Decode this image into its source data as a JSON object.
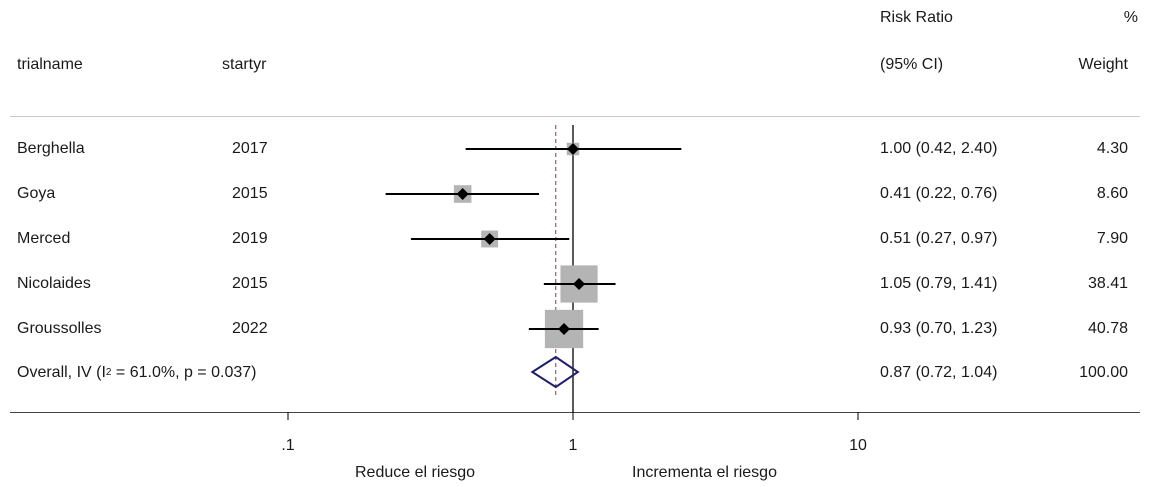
{
  "header": {
    "trialname": "trialname",
    "startyr": "startyr",
    "rr_line1": "Risk Ratio",
    "rr_line2": "(95% CI)",
    "w_line1": "%",
    "w_line2": "Weight"
  },
  "chart_data": {
    "type": "forest",
    "scale": "log",
    "xlim": [
      0.01,
      100
    ],
    "reference_line": 1,
    "overall_line": 0.87,
    "x_ticks": [
      {
        "value": 0.1,
        "label": ".1"
      },
      {
        "value": 1,
        "label": "1"
      },
      {
        "value": 10,
        "label": "10"
      }
    ],
    "x_captions": {
      "left": "Reduce el riesgo",
      "right": "Incrementa el riesgo"
    },
    "studies": [
      {
        "name": "Berghella",
        "year": "2017",
        "rr": 1.0,
        "lo": 0.42,
        "hi": 2.4,
        "ci_text": "1.00 (0.42, 2.40)",
        "weight": 4.3,
        "weight_text": "4.30"
      },
      {
        "name": "Goya",
        "year": "2015",
        "rr": 0.41,
        "lo": 0.22,
        "hi": 0.76,
        "ci_text": "0.41 (0.22, 0.76)",
        "weight": 8.6,
        "weight_text": "8.60"
      },
      {
        "name": "Merced",
        "year": "2019",
        "rr": 0.51,
        "lo": 0.27,
        "hi": 0.97,
        "ci_text": "0.51 (0.27, 0.97)",
        "weight": 7.9,
        "weight_text": "7.90"
      },
      {
        "name": "Nicolaides",
        "year": "2015",
        "rr": 1.05,
        "lo": 0.79,
        "hi": 1.41,
        "ci_text": "1.05 (0.79, 1.41)",
        "weight": 38.41,
        "weight_text": "38.41"
      },
      {
        "name": "Groussolles",
        "year": "2022",
        "rr": 0.93,
        "lo": 0.7,
        "hi": 1.23,
        "ci_text": "0.93 (0.70, 1.23)",
        "weight": 40.78,
        "weight_text": "40.78"
      }
    ],
    "overall": {
      "label_prefix": "Overall, IV (I",
      "label_sup": "2",
      "label_suffix": " = 61.0%, p = 0.037)",
      "rr": 0.87,
      "lo": 0.72,
      "hi": 1.04,
      "ci_text": "0.87 (0.72, 1.04)",
      "weight_text": "100.00"
    },
    "colors": {
      "marker": "#000000",
      "box": "#b4b4b4",
      "diamond": "#1f1f6e",
      "overall_line": "#a03030"
    }
  }
}
